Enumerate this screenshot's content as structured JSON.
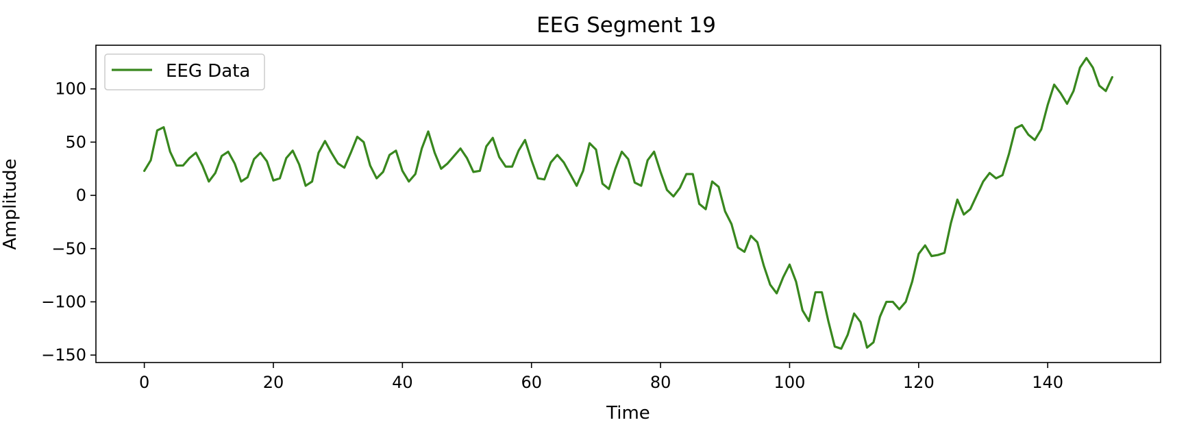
{
  "chart_data": {
    "type": "line",
    "title": "EEG Segment 19",
    "xlabel": "Time",
    "ylabel": "Amplitude",
    "xlim": [
      -7.5,
      157.5
    ],
    "ylim": [
      -157,
      141
    ],
    "xticks": [
      0,
      20,
      40,
      60,
      80,
      100,
      120,
      140
    ],
    "yticks": [
      100,
      50,
      0,
      -50,
      -100,
      -150
    ],
    "xtick_labels": [
      "0",
      "20",
      "40",
      "60",
      "80",
      "100",
      "120",
      "140"
    ],
    "ytick_labels": [
      "100",
      "50",
      "0",
      "−50",
      "−100",
      "−150"
    ],
    "grid": false,
    "legend": {
      "position": "upper-left",
      "entries": [
        "EEG Data"
      ]
    },
    "series": [
      {
        "name": "EEG Data",
        "color": "#38871e",
        "x": [
          0,
          1,
          2,
          3,
          4,
          5,
          6,
          7,
          8,
          9,
          10,
          11,
          12,
          13,
          14,
          15,
          16,
          17,
          18,
          19,
          20,
          21,
          22,
          23,
          24,
          25,
          26,
          27,
          28,
          29,
          30,
          31,
          32,
          33,
          34,
          35,
          36,
          37,
          38,
          39,
          40,
          41,
          42,
          43,
          44,
          45,
          46,
          47,
          48,
          49,
          50,
          51,
          52,
          53,
          54,
          55,
          56,
          57,
          58,
          59,
          60,
          61,
          62,
          63,
          64,
          65,
          66,
          67,
          68,
          69,
          70,
          71,
          72,
          73,
          74,
          75,
          76,
          77,
          78,
          79,
          80,
          81,
          82,
          83,
          84,
          85,
          86,
          87,
          88,
          89,
          90,
          91,
          92,
          93,
          94,
          95,
          96,
          97,
          98,
          99,
          100,
          101,
          102,
          103,
          104,
          105,
          106,
          107,
          108,
          109,
          110,
          111,
          112,
          113,
          114,
          115,
          116,
          117,
          118,
          119,
          120,
          121,
          122,
          123,
          124,
          125,
          126,
          127,
          128,
          129,
          130,
          131,
          132,
          133,
          134,
          135,
          136,
          137,
          138,
          139,
          140,
          141,
          142,
          143,
          144,
          145,
          146,
          147,
          148,
          149,
          150
        ],
        "values": [
          23,
          33,
          61,
          64,
          41,
          28,
          28,
          35,
          40,
          28,
          13,
          21,
          37,
          41,
          30,
          13,
          17,
          34,
          40,
          32,
          14,
          16,
          35,
          42,
          29,
          9,
          13,
          40,
          51,
          40,
          30,
          26,
          40,
          55,
          50,
          28,
          16,
          22,
          38,
          42,
          23,
          13,
          20,
          44,
          60,
          40,
          25,
          30,
          37,
          44,
          35,
          22,
          23,
          46,
          54,
          36,
          27,
          27,
          42,
          52,
          33,
          16,
          15,
          31,
          38,
          31,
          20,
          9,
          23,
          49,
          43,
          11,
          6,
          25,
          41,
          34,
          12,
          9,
          33,
          41,
          22,
          5,
          -1,
          7,
          20,
          20,
          -8,
          -13,
          13,
          8,
          -15,
          -27,
          -49,
          -53,
          -38,
          -44,
          -66,
          -84,
          -92,
          -77,
          -65,
          -81,
          -108,
          -118,
          -91,
          -91,
          -118,
          -142,
          -144,
          -131,
          -111,
          -119,
          -143,
          -138,
          -114,
          -100,
          -100,
          -107,
          -100,
          -81,
          -55,
          -47,
          -57,
          -56,
          -54,
          -26,
          -4,
          -18,
          -13,
          0,
          13,
          21,
          16,
          19,
          39,
          63,
          66,
          57,
          52,
          62,
          85,
          104,
          96,
          86,
          98,
          120,
          129,
          120,
          103,
          98,
          111
        ]
      }
    ]
  }
}
